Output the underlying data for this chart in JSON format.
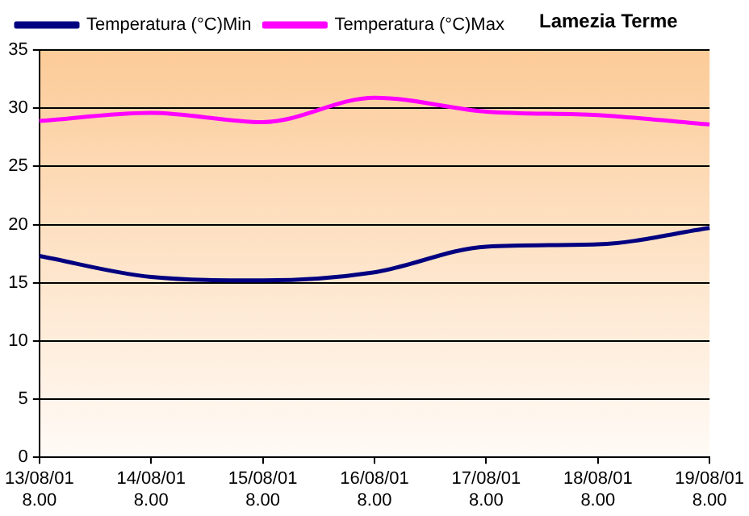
{
  "chart_data": {
    "type": "line",
    "title": "Lamezia Terme",
    "categories": [
      "13/08/01\n8.00",
      "14/08/01\n8.00",
      "15/08/01\n8.00",
      "16/08/01\n8.00",
      "17/08/01\n8.00",
      "18/08/01\n8.00",
      "19/08/01\n8.00"
    ],
    "series": [
      {
        "name": "Temperatura (°C)Min",
        "color": "#000080",
        "values": [
          17.3,
          15.5,
          15.2,
          15.9,
          18.1,
          18.3,
          19.7
        ]
      },
      {
        "name": "Temperatura (°C)Max",
        "color": "#ff00ff",
        "values": [
          28.9,
          29.6,
          28.8,
          30.9,
          29.7,
          29.4,
          28.6
        ]
      }
    ],
    "ylim": [
      0,
      35
    ],
    "yticks": [
      0,
      5,
      10,
      15,
      20,
      25,
      30,
      35
    ],
    "grid": "y",
    "legend": "top left",
    "marker": "none",
    "line_style": "solid"
  }
}
